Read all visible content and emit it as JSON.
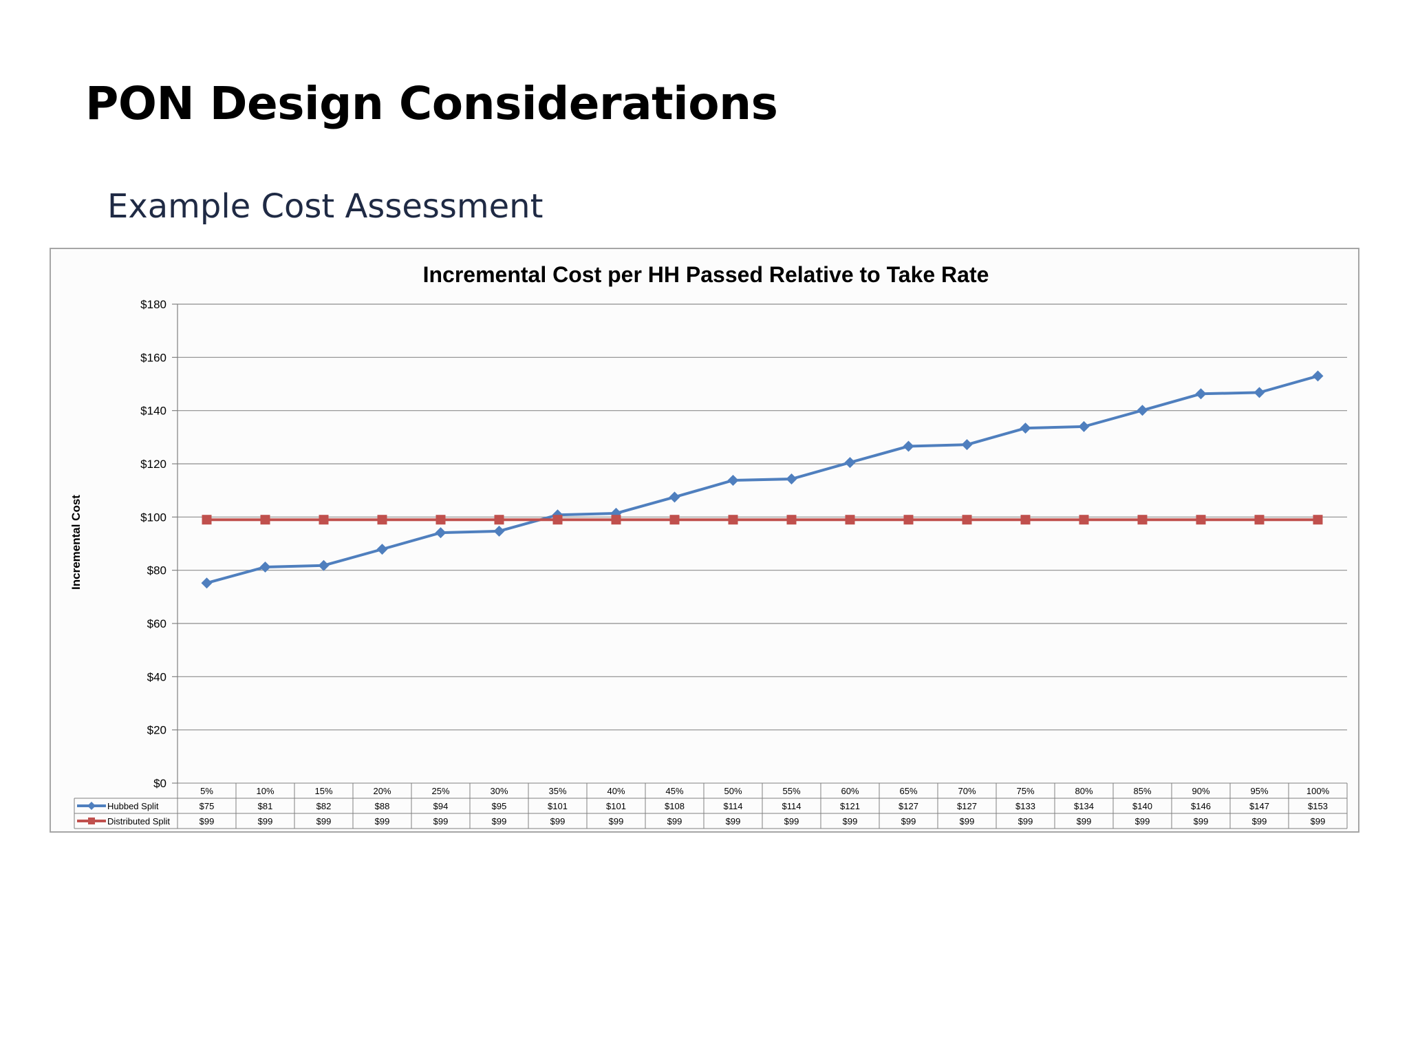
{
  "slide": {
    "title": "PON Design Considerations",
    "subtitle": "Example Cost Assessment"
  },
  "colors": {
    "hubbed": "#4f7fbe",
    "distributed": "#c0504d",
    "grid": "#8c8c8c",
    "frame": "#a6a6a6"
  },
  "chart_data": {
    "type": "line",
    "title": "Incremental Cost per HH Passed Relative to Take Rate",
    "xlabel": "",
    "ylabel": "Incremental Cost",
    "categories": [
      "5%",
      "10%",
      "15%",
      "20%",
      "25%",
      "30%",
      "35%",
      "40%",
      "45%",
      "50%",
      "55%",
      "60%",
      "65%",
      "70%",
      "75%",
      "80%",
      "85%",
      "90%",
      "95%",
      "100%"
    ],
    "ylim": [
      0,
      180
    ],
    "yticks": [
      0,
      20,
      40,
      60,
      80,
      100,
      120,
      140,
      160,
      180
    ],
    "ytick_labels": [
      "$0",
      "$20",
      "$40",
      "$60",
      "$80",
      "$100",
      "$120",
      "$140",
      "$160",
      "$180"
    ],
    "grid": true,
    "legend": "data table below the chart",
    "series": [
      {
        "name": "Hubbed Split",
        "color": "#4f7fbe",
        "marker": "diamond",
        "values": [
          75.2,
          81.2,
          81.8,
          87.9,
          94.1,
          94.7,
          100.8,
          101.4,
          107.5,
          113.8,
          114.3,
          120.5,
          126.6,
          127.2,
          133.4,
          134.0,
          140.1,
          146.3,
          146.8,
          153.0
        ],
        "labels": [
          "$75",
          "$81",
          "$82",
          "$88",
          "$94",
          "$95",
          "$101",
          "$101",
          "$108",
          "$114",
          "$114",
          "$121",
          "$127",
          "$127",
          "$133",
          "$134",
          "$140",
          "$146",
          "$147",
          "$153"
        ]
      },
      {
        "name": "Distributed Split",
        "color": "#c0504d",
        "marker": "square",
        "values": [
          99,
          99,
          99,
          99,
          99,
          99,
          99,
          99,
          99,
          99,
          99,
          99,
          99,
          99,
          99,
          99,
          99,
          99,
          99,
          99
        ],
        "labels": [
          "$99",
          "$99",
          "$99",
          "$99",
          "$99",
          "$99",
          "$99",
          "$99",
          "$99",
          "$99",
          "$99",
          "$99",
          "$99",
          "$99",
          "$99",
          "$99",
          "$99",
          "$99",
          "$99",
          "$99"
        ]
      }
    ]
  }
}
